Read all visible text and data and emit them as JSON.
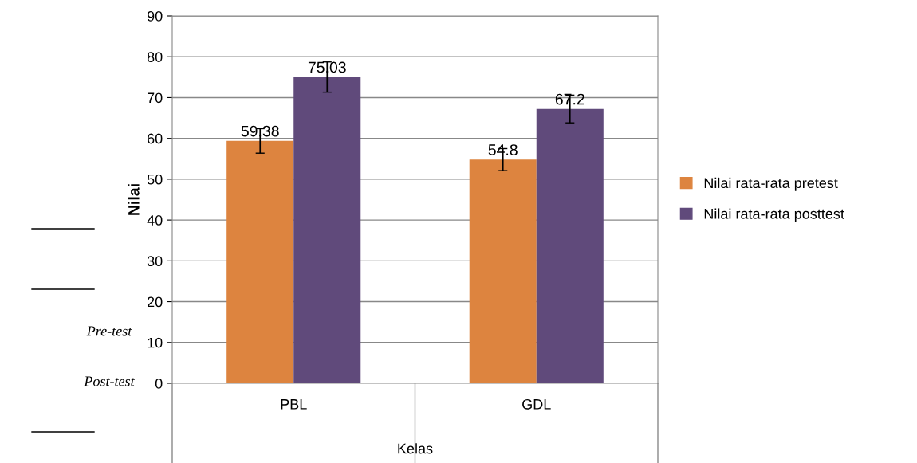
{
  "chart_data": {
    "type": "bar",
    "ylabel": "Nilai",
    "xlabel": "Kelas",
    "categories": [
      "PBL",
      "GDL"
    ],
    "series": [
      {
        "name": "Nilai rata-rata pretest",
        "color": "#dd843f",
        "values": [
          59.38,
          54.8
        ],
        "errors": [
          3,
          2.7
        ]
      },
      {
        "name": "Nilai rata-rata posttest",
        "color": "#604a7b",
        "values": [
          75.03,
          67.2
        ],
        "errors": [
          3.7,
          3.4
        ]
      }
    ],
    "ylim": [
      0,
      90
    ],
    "yticks": [
      0,
      10,
      20,
      30,
      40,
      50,
      60,
      70,
      80,
      90
    ],
    "grid": "y",
    "legend": "right",
    "data_labels": true,
    "annotations": [
      "Pre-test",
      "Post-test"
    ]
  }
}
